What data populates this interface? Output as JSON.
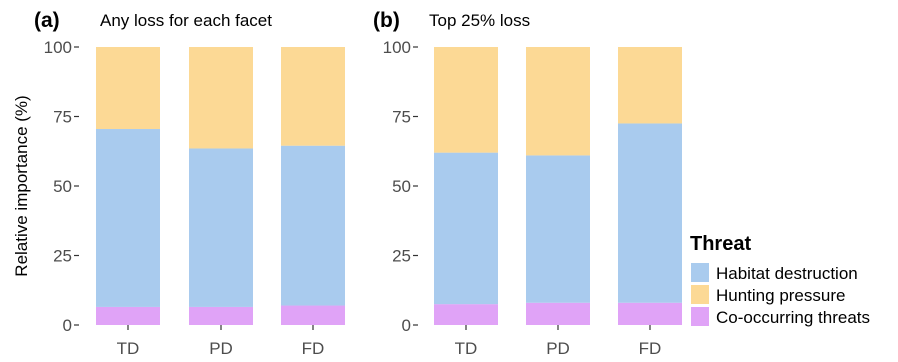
{
  "chart_data": {
    "type": "bar",
    "stacked": true,
    "ylabel": "Relative importance (%)",
    "ylim": [
      0,
      100
    ],
    "yticks": [
      "0",
      "25",
      "50",
      "75",
      "100"
    ],
    "legend": {
      "title": "Threat",
      "placement": "right",
      "items": [
        {
          "label": "Habitat destruction",
          "color": "#a9cbee"
        },
        {
          "label": "Hunting pressure",
          "color": "#fcd995"
        },
        {
          "label": "Co-occurring threats",
          "color": "#e0a3f7"
        }
      ]
    },
    "panels": [
      {
        "letter": "(a)",
        "title": "Any loss for each facet",
        "categories": [
          "TD",
          "PD",
          "FD"
        ],
        "series": [
          {
            "name": "Co-occurring threats",
            "values": [
              6.5,
              6.5,
              7
            ]
          },
          {
            "name": "Habitat destruction",
            "values": [
              64,
              57,
              57.5
            ]
          },
          {
            "name": "Hunting pressure",
            "values": [
              29.5,
              36.5,
              35.5
            ]
          }
        ]
      },
      {
        "letter": "(b)",
        "title": "Top 25% loss",
        "categories": [
          "TD",
          "PD",
          "FD"
        ],
        "series": [
          {
            "name": "Co-occurring threats",
            "values": [
              7.5,
              8,
              8
            ]
          },
          {
            "name": "Habitat destruction",
            "values": [
              54.5,
              53,
              64.5
            ]
          },
          {
            "name": "Hunting pressure",
            "values": [
              38,
              39,
              27.5
            ]
          }
        ]
      }
    ]
  }
}
